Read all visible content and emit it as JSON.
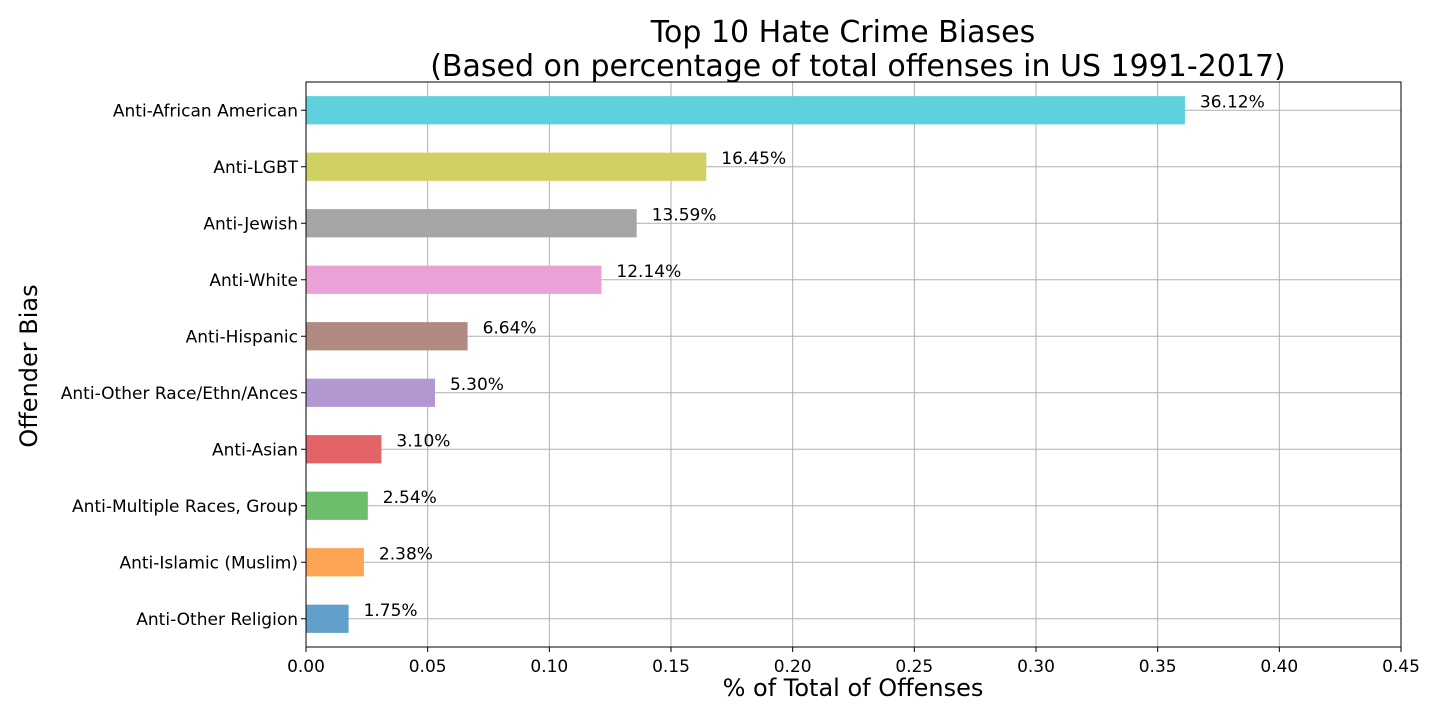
{
  "chart_data": {
    "type": "bar",
    "orientation": "horizontal",
    "title": "Top 10 Hate Crime Biases",
    "subtitle": "(Based on percentage of total offenses in US 1991-2017)",
    "xlabel": "% of Total of Offenses",
    "ylabel": "Offender Bias",
    "xlim": [
      0,
      0.45
    ],
    "xticks": [
      "0.00",
      "0.05",
      "0.10",
      "0.15",
      "0.20",
      "0.25",
      "0.30",
      "0.35",
      "0.40",
      "0.45"
    ],
    "grid": true,
    "categories": [
      "Anti-African American",
      "Anti-LGBT",
      "Anti-Jewish",
      "Anti-White",
      "Anti-Hispanic",
      "Anti-Other Race/Ethn/Ances",
      "Anti-Asian",
      "Anti-Multiple Races, Group",
      "Anti-Islamic (Muslim)",
      "Anti-Other Religion"
    ],
    "values": [
      0.3612,
      0.1645,
      0.1359,
      0.1214,
      0.0664,
      0.053,
      0.031,
      0.0254,
      0.0238,
      0.0175
    ],
    "data_labels": [
      "36.12%",
      "16.45%",
      "13.59%",
      "12.14%",
      "6.64%",
      "5.30%",
      "3.10%",
      "2.54%",
      "2.38%",
      "1.75%"
    ],
    "colors": [
      "#5fd1dd",
      "#d1d163",
      "#a5a5a5",
      "#eaa1d6",
      "#b08981",
      "#b397d0",
      "#e36466",
      "#6cbe6c",
      "#fda554",
      "#60a0ca"
    ]
  }
}
